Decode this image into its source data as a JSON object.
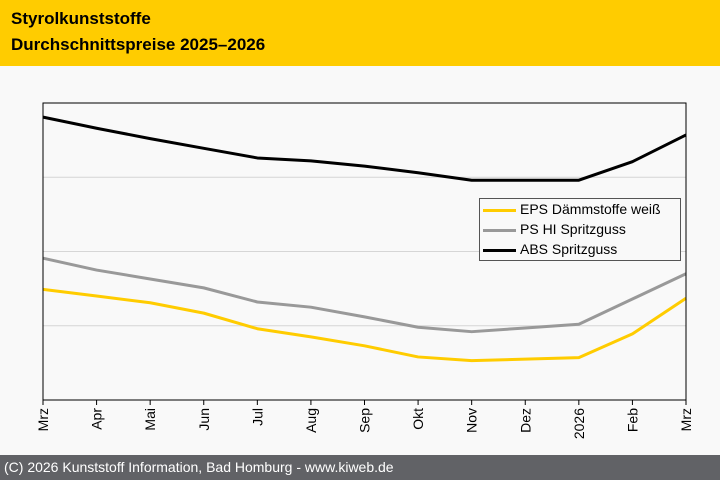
{
  "header": {
    "title_line1": "Styrolkunststoffe",
    "title_line2": "Durchschnittspreise 2025–2026"
  },
  "footer": {
    "text": "(C) 2026 Kunststoff Information, Bad Homburg - www.kiweb.de"
  },
  "colors": {
    "header_bg": "#ffcc00",
    "footer_bg": "#616266",
    "eps": "#ffcc00",
    "ps": "#999999",
    "abs": "#000000"
  },
  "chart_data": {
    "type": "line",
    "title": "Styrolkunststoffe Durchschnittspreise 2025–2026",
    "xlabel": "",
    "ylabel": "",
    "y_unit_note": "No y-axis labels shown; values expressed in gridline units (bottom=0, top=4)",
    "ylim": [
      0,
      4
    ],
    "grid": true,
    "legend_position": "center-right",
    "categories": [
      "Mrz",
      "Apr",
      "Mai",
      "Jun",
      "Jul",
      "Aug",
      "Sep",
      "Okt",
      "Nov",
      "Dez",
      "2026",
      "Feb",
      "Mrz"
    ],
    "series": [
      {
        "name": "EPS Dämmstoffe weiß",
        "color": "#ffcc00",
        "values": [
          1.49,
          1.4,
          1.31,
          1.17,
          0.96,
          0.85,
          0.73,
          0.58,
          0.53,
          0.55,
          0.57,
          0.89,
          1.37
        ]
      },
      {
        "name": "PS HI Spritzguss",
        "color": "#999999",
        "values": [
          1.91,
          1.75,
          1.63,
          1.51,
          1.32,
          1.25,
          1.12,
          0.98,
          0.92,
          0.97,
          1.02,
          1.36,
          1.7
        ]
      },
      {
        "name": "ABS Spritzguss",
        "color": "#000000",
        "values": [
          3.81,
          3.66,
          3.52,
          3.39,
          3.26,
          3.22,
          3.15,
          3.06,
          2.96,
          2.96,
          2.96,
          3.21,
          3.57
        ]
      }
    ]
  }
}
